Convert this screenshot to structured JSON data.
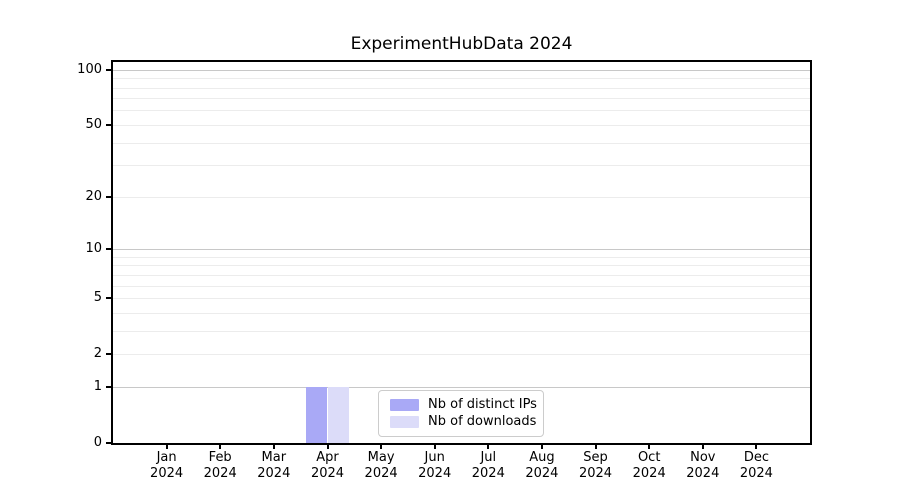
{
  "chart_data": {
    "type": "bar",
    "title": "ExperimentHubData 2024",
    "categories": [
      "Jan",
      "Feb",
      "Mar",
      "Apr",
      "May",
      "Jun",
      "Jul",
      "Aug",
      "Sep",
      "Oct",
      "Nov",
      "Dec"
    ],
    "category_year": "2024",
    "series": [
      {
        "name": "Nb of distinct IPs",
        "color": "#a9a9f6",
        "values": [
          0,
          0,
          0,
          1,
          0,
          0,
          0,
          0,
          0,
          0,
          0,
          0
        ]
      },
      {
        "name": "Nb of downloads",
        "color": "#dcdcf9",
        "values": [
          0,
          0,
          0,
          1,
          0,
          0,
          0,
          0,
          0,
          0,
          0,
          0
        ]
      }
    ],
    "yscale": "log1p",
    "ylim": [
      0,
      110
    ],
    "ytick_labels": [
      "0",
      "1",
      "2",
      "5",
      "10",
      "20",
      "50",
      "100"
    ],
    "grid_major": [
      1,
      10,
      100
    ],
    "grid_minor": [
      2,
      3,
      4,
      5,
      6,
      7,
      8,
      9,
      20,
      30,
      40,
      50,
      60,
      70,
      80,
      90
    ],
    "xlabel": "",
    "ylabel": "",
    "grid": "horizontal",
    "legend": {
      "position": "lower center",
      "entries": [
        "Nb of distinct IPs",
        "Nb of downloads"
      ]
    },
    "colors": {
      "bar_distinct_ips": "#a9a9f6",
      "bar_downloads": "#dcdcf9",
      "grid_major": "#c8c8c8",
      "grid_minor": "#ececec",
      "spine": "#000000",
      "background": "#ffffff"
    }
  }
}
